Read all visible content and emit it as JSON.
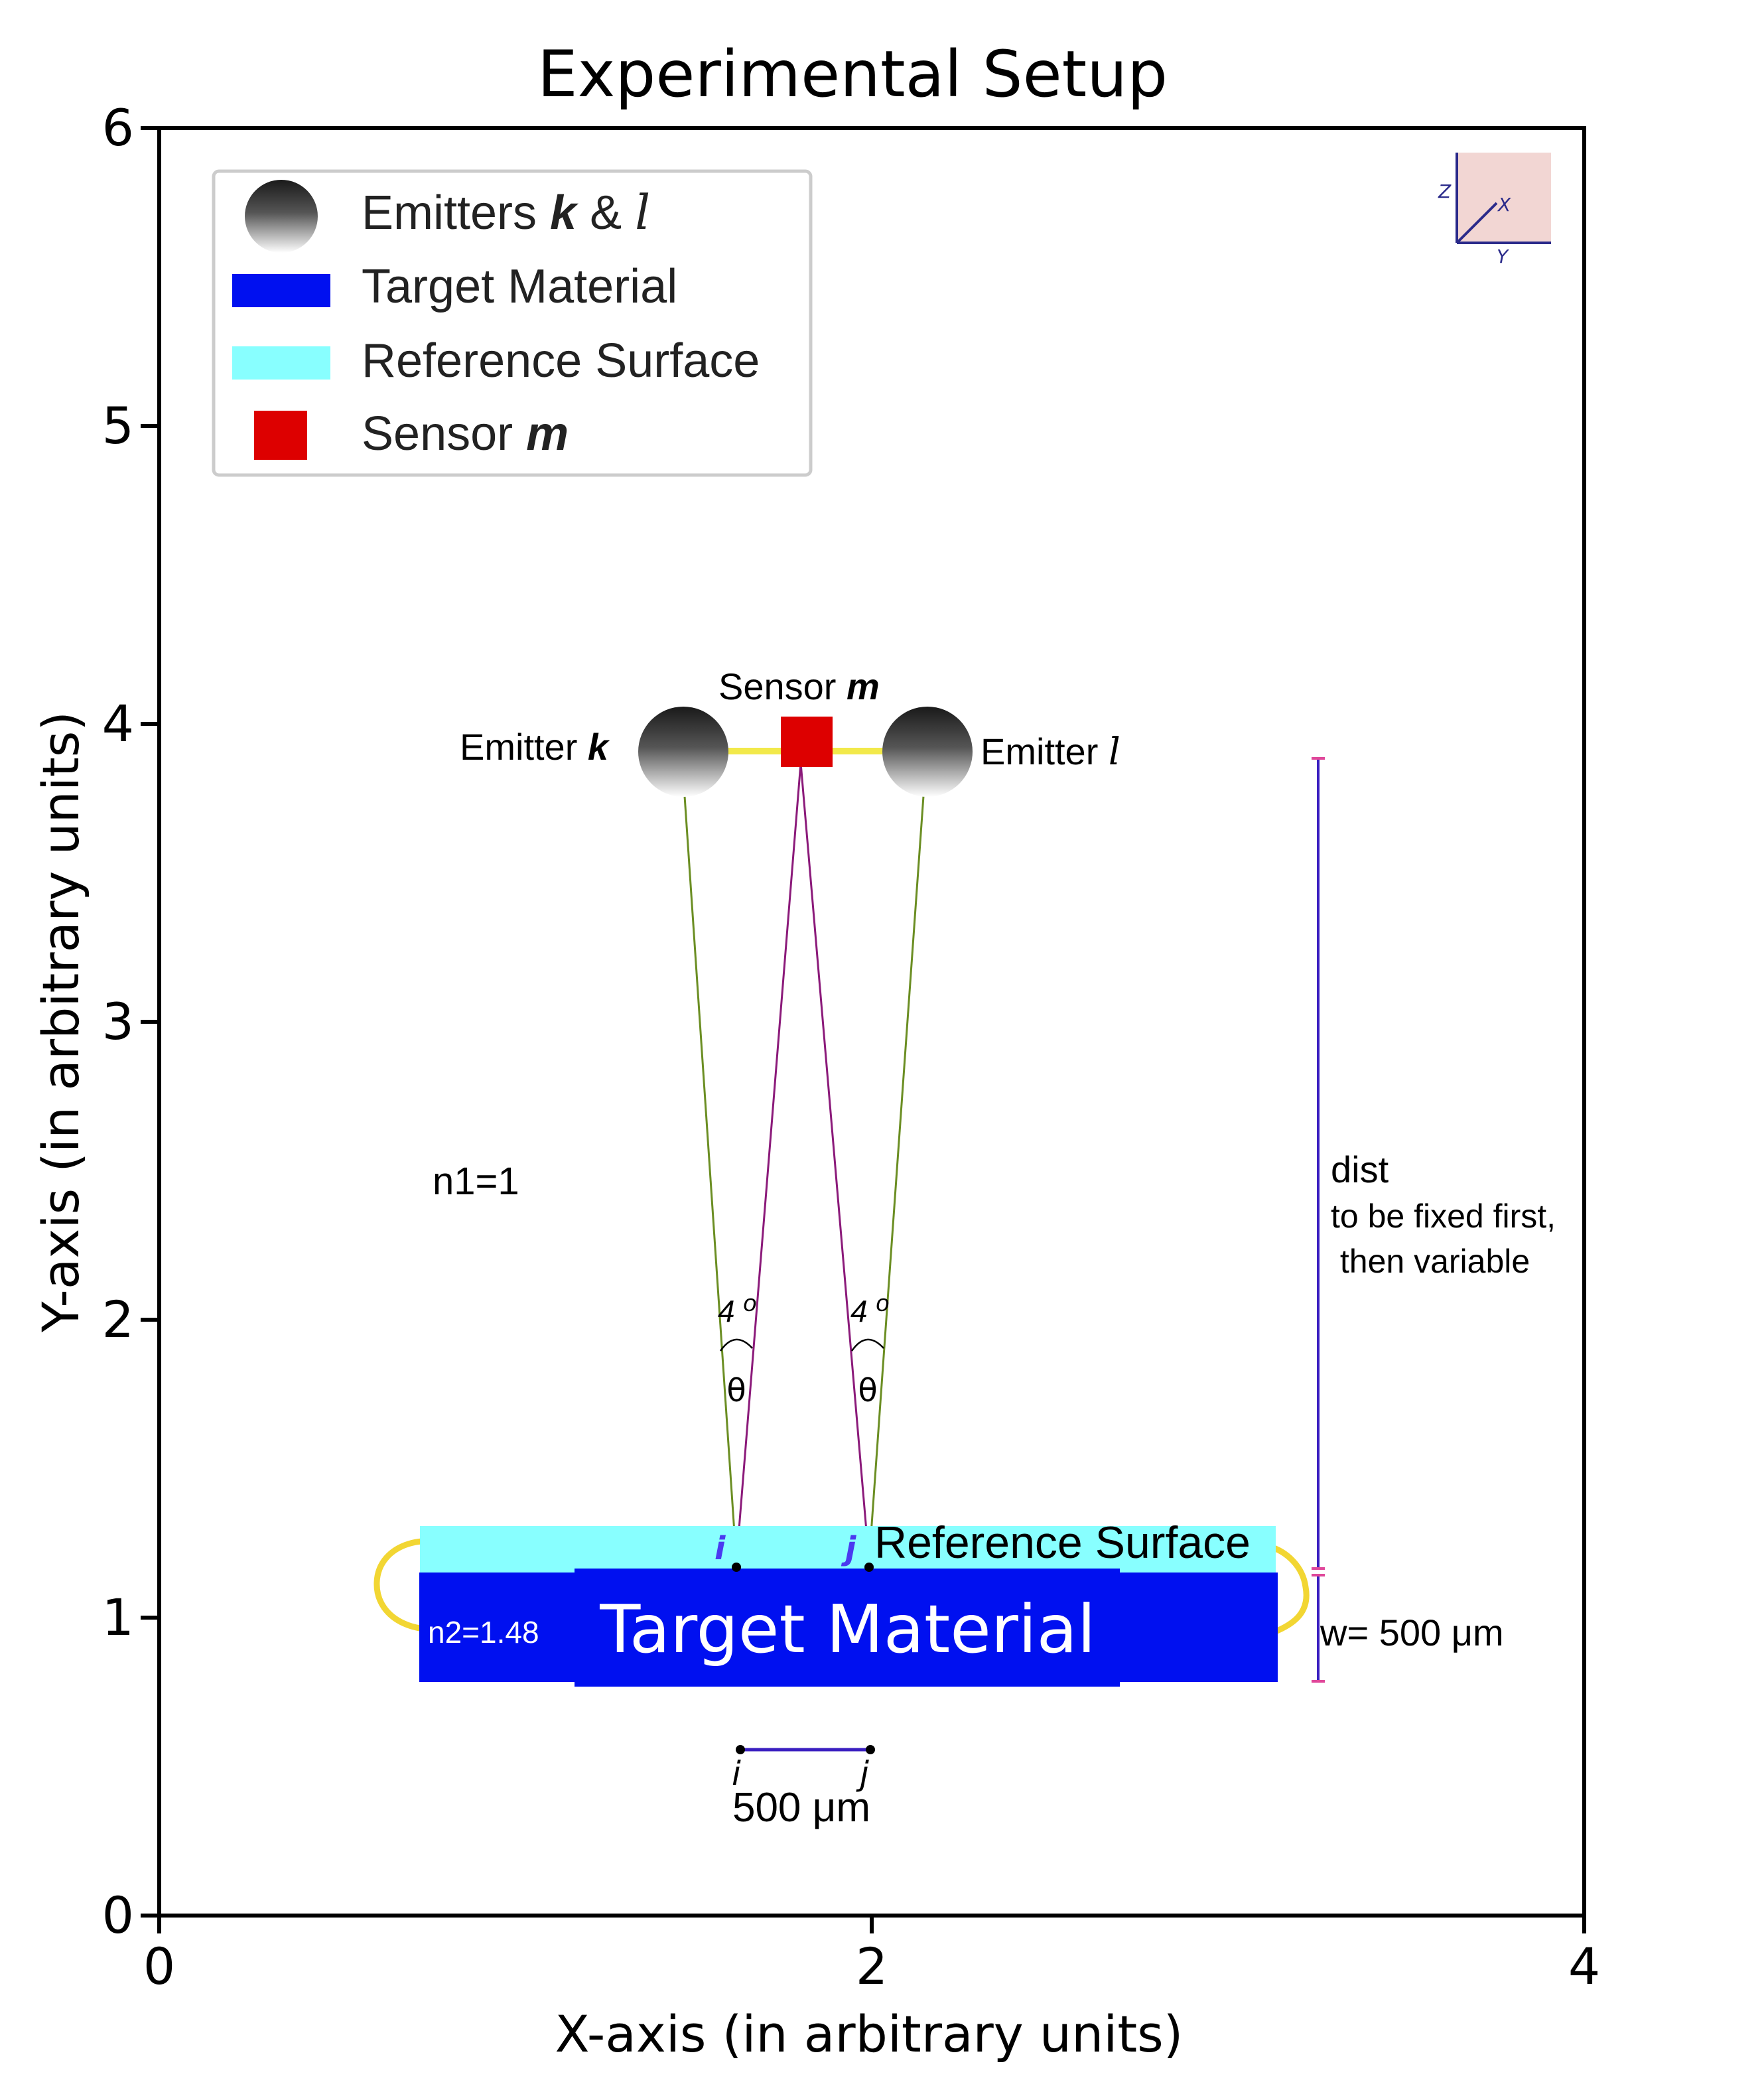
{
  "figure": {
    "title": "Experimental Setup",
    "xlabel": "X-axis (in arbitrary units)",
    "ylabel": "Y-axis (in arbitrary units)",
    "xlim": [
      0,
      4
    ],
    "ylim": [
      0,
      6
    ],
    "x_ticks": [
      "0",
      "2",
      "4"
    ],
    "y_ticks": [
      "0",
      "1",
      "2",
      "3",
      "4",
      "5",
      "6"
    ]
  },
  "legend": {
    "position": "top-left",
    "items": [
      {
        "text": "Emitters",
        "var1": "k",
        "amp": "&",
        "var2": "l",
        "symbol": "sphere"
      },
      {
        "text": "Target Material",
        "symbol": "rect",
        "color": "#0010f0"
      },
      {
        "text": "Reference Surface",
        "symbol": "rect",
        "color": "#88ffff"
      },
      {
        "text": "Sensor",
        "var": "m",
        "symbol": "square",
        "color": "#dd0000"
      }
    ]
  },
  "axes_icon": {
    "z": "Z",
    "x": "X",
    "y": "Y"
  },
  "diagram": {
    "emitter_k": {
      "label": "Emitter",
      "var": "k"
    },
    "emitter_l": {
      "label": "Emitter",
      "var": "l"
    },
    "sensor": {
      "label": "Sensor",
      "var": "m"
    },
    "medium1": "n1=1",
    "medium2": "n2=1.48",
    "angle_left": "4",
    "angle_right": "4",
    "angle_sup": "o",
    "theta": "θ",
    "point_i": "i",
    "point_j": "j",
    "reference_label": "Reference Surface",
    "target_label": "Target Material",
    "scale_i": "i",
    "scale_j": "j",
    "scale_label": "500 μm",
    "dist_label": "dist",
    "dist_note_1": "to be fixed first,",
    "dist_note_2": " then variable",
    "width_label": "w= 500 μm",
    "colors": {
      "target": "#0010f0",
      "reference": "#88ffff",
      "sensor": "#dd0000",
      "ray_green": "#6b8e23",
      "ray_purple": "#8b1a7a",
      "dimension": "#3a1fc0",
      "yellow": "#f2d633",
      "point_label": "#4a3af0"
    }
  }
}
